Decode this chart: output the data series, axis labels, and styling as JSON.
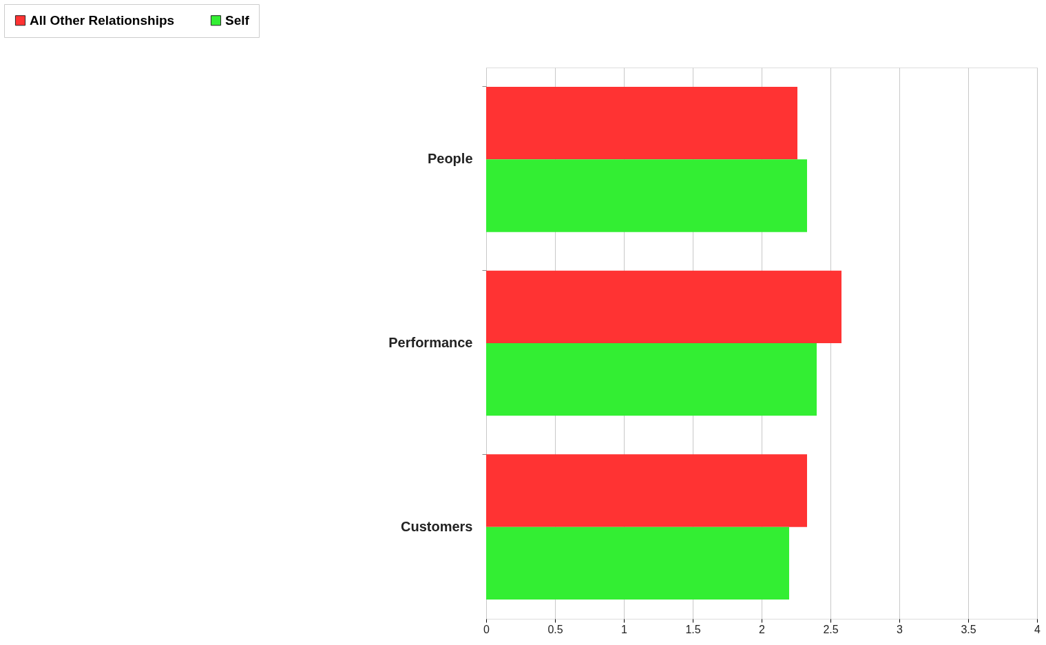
{
  "chart_data": {
    "type": "bar",
    "orientation": "horizontal",
    "categories": [
      "People",
      "Performance",
      "Customers"
    ],
    "series": [
      {
        "name": "All Other Relationships",
        "color": "#ff3333",
        "values": [
          2.26,
          2.58,
          2.33
        ]
      },
      {
        "name": "Self",
        "color": "#33ee33",
        "values": [
          2.33,
          2.4,
          2.2
        ]
      }
    ],
    "xlim": [
      0,
      4
    ],
    "xticks": [
      0,
      0.5,
      1,
      1.5,
      2,
      2.5,
      3,
      3.5,
      4
    ],
    "grid": "x",
    "legend": "top left"
  }
}
